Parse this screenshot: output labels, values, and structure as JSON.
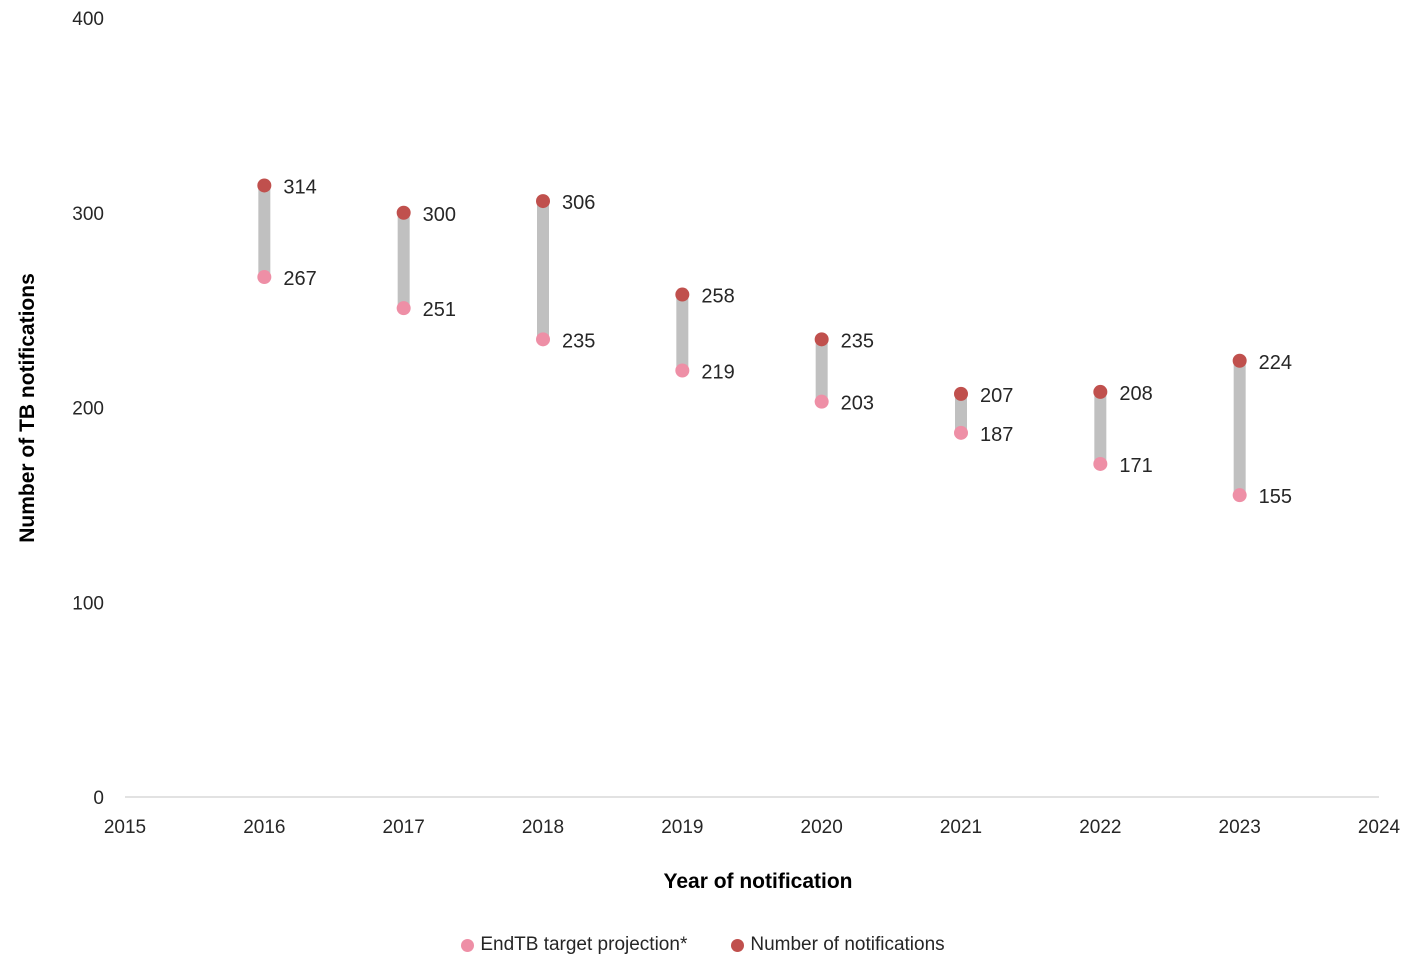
{
  "chart_data": {
    "type": "scatter",
    "subtype": "dumbbell",
    "x": [
      2016,
      2017,
      2018,
      2019,
      2020,
      2021,
      2022,
      2023
    ],
    "series": [
      {
        "name": "EndTB target projection*",
        "color": "#EE8FA6",
        "values": [
          267,
          251,
          235,
          219,
          203,
          187,
          171,
          155
        ]
      },
      {
        "name": "Number of notifications",
        "color": "#C0504D",
        "values": [
          314,
          300,
          306,
          258,
          235,
          207,
          208,
          224
        ]
      }
    ],
    "connector_color": "#C0C0C0",
    "xlabel": "Year of notification",
    "ylabel": "Number of TB notifications",
    "xlim": [
      2015,
      2024
    ],
    "ylim": [
      0,
      400
    ],
    "x_ticks": [
      2015,
      2016,
      2017,
      2018,
      2019,
      2020,
      2021,
      2022,
      2023,
      2024
    ],
    "y_ticks": [
      0,
      100,
      200,
      300,
      400
    ],
    "grid": false,
    "legend_position": "bottom"
  }
}
